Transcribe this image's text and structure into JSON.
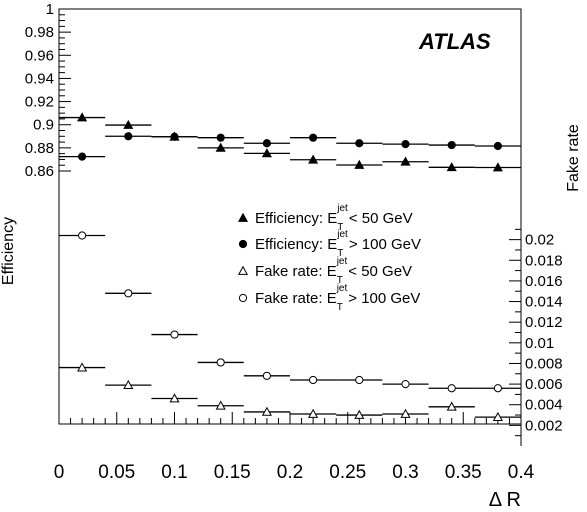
{
  "chart_data": {
    "type": "scatter",
    "atlas_label": "ATLAS",
    "xlabel": "Δ R",
    "ylabel_left": "Efficiency",
    "ylabel_right": "Fake rate",
    "xlim": [
      0,
      0.4
    ],
    "x_ticks": [
      0,
      0.05,
      0.1,
      0.15,
      0.2,
      0.25,
      0.3,
      0.35,
      0.4
    ],
    "x_tick_labels": [
      "0",
      "0.05",
      "0.1",
      "0.15",
      "0.2",
      "0.25",
      "0.3",
      "0.35",
      "0.4"
    ],
    "efficiency_axis": {
      "range": [
        0.86,
        1.0
      ],
      "ticks": [
        0.86,
        0.88,
        0.9,
        0.92,
        0.94,
        0.96,
        0.98,
        1.0
      ],
      "tick_labels": [
        "0.86",
        "0.88",
        "0.9",
        "0.92",
        "0.94",
        "0.96",
        "0.98",
        "1"
      ]
    },
    "fake_rate_axis": {
      "range": [
        0.0,
        0.022
      ],
      "ticks": [
        0.002,
        0.004,
        0.006,
        0.008,
        0.01,
        0.012,
        0.014,
        0.016,
        0.018,
        0.02
      ],
      "tick_labels": [
        "0.002",
        "0.004",
        "0.006",
        "0.008",
        "0.01",
        "0.012",
        "0.014",
        "0.016",
        "0.018",
        "0.02"
      ]
    },
    "bin_edges": [
      0,
      0.04,
      0.08,
      0.12,
      0.16,
      0.2,
      0.24,
      0.28,
      0.32,
      0.36,
      0.4
    ],
    "x": [
      0.02,
      0.06,
      0.1,
      0.14,
      0.18,
      0.22,
      0.26,
      0.3,
      0.34,
      0.38
    ],
    "series": [
      {
        "name_main": "Efficiency: E",
        "name_sup": "jet",
        "name_sub": "T",
        "name_tail": " < 50 GeV",
        "axis": "efficiency",
        "marker": "filled-triangle",
        "values": [
          0.9062,
          0.8997,
          0.8896,
          0.88,
          0.8752,
          0.8697,
          0.8652,
          0.868,
          0.8632,
          0.863
        ]
      },
      {
        "name_main": "Efficiency: E",
        "name_sup": "jet",
        "name_sub": "T",
        "name_tail": " > 100 GeV",
        "axis": "efficiency",
        "marker": "filled-circle",
        "values": [
          0.8724,
          0.89,
          0.8896,
          0.8888,
          0.884,
          0.8888,
          0.884,
          0.8832,
          0.8824,
          0.8816
        ]
      },
      {
        "name_main": "Fake rate: E",
        "name_sup": "jet",
        "name_sub": "T",
        "name_tail": " < 50 GeV",
        "axis": "fake_rate",
        "marker": "open-triangle",
        "values": [
          0.0076,
          0.0059,
          0.0046,
          0.0039,
          0.0033,
          0.0031,
          0.003,
          0.0031,
          0.0038,
          0.0028
        ]
      },
      {
        "name_main": "Fake rate: E",
        "name_sup": "jet",
        "name_sub": "T",
        "name_tail": " > 100 GeV",
        "axis": "fake_rate",
        "marker": "open-circle",
        "values": [
          0.0204,
          0.0148,
          0.0108,
          0.0081,
          0.0068,
          0.0064,
          0.0064,
          0.006,
          0.0056,
          0.0056
        ]
      }
    ],
    "grid": false,
    "legend_position": "center-right"
  }
}
